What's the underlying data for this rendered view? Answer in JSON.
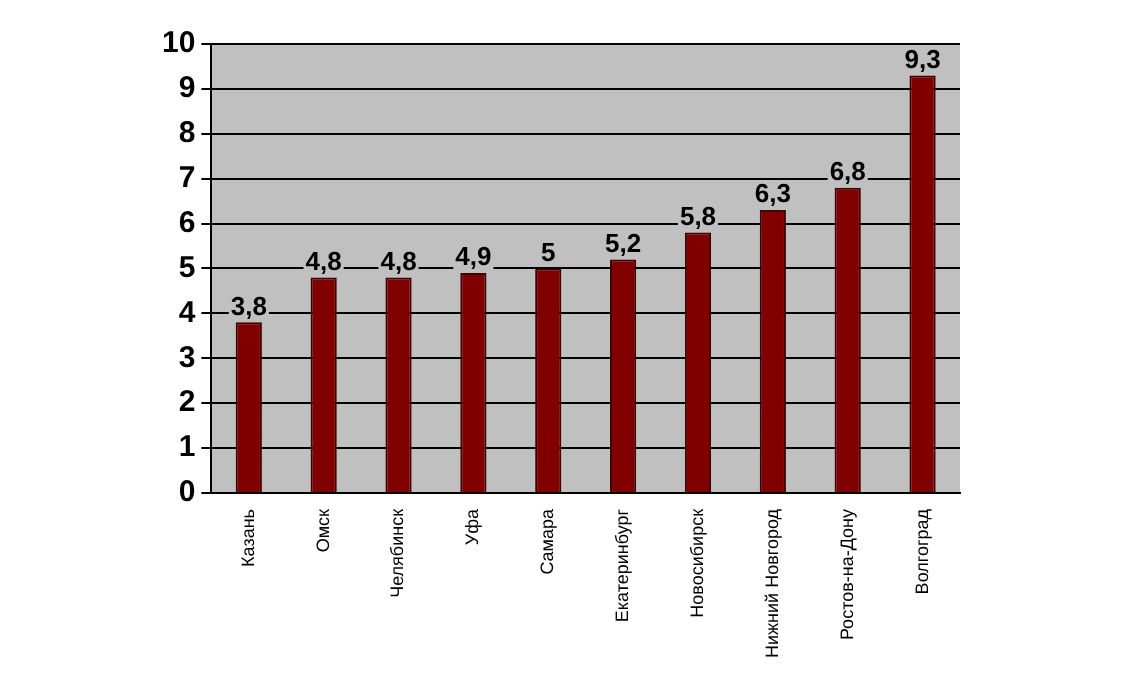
{
  "chart_data": {
    "type": "bar",
    "categories": [
      "Казань",
      "Омск",
      "Челябинск",
      "Уфа",
      "Самара",
      "Екатеринбург",
      "Новосибирск",
      "Нижний Новгород",
      "Ростов-на-Дону",
      "Волгоград"
    ],
    "values": [
      3.8,
      4.8,
      4.8,
      4.9,
      5,
      5.2,
      5.8,
      6.3,
      6.8,
      9.3
    ],
    "color": "#800000",
    "value_labels": [
      "3,8",
      "4,8",
      "4,8",
      "4,9",
      "5",
      "5,2",
      "5,8",
      "6,3",
      "6,8",
      "9,3"
    ],
    "ylim": [
      0,
      10
    ],
    "yticks": [
      0,
      1,
      2,
      3,
      4,
      5,
      6,
      7,
      8,
      9,
      10
    ],
    "grid": "y",
    "legend": false
  }
}
